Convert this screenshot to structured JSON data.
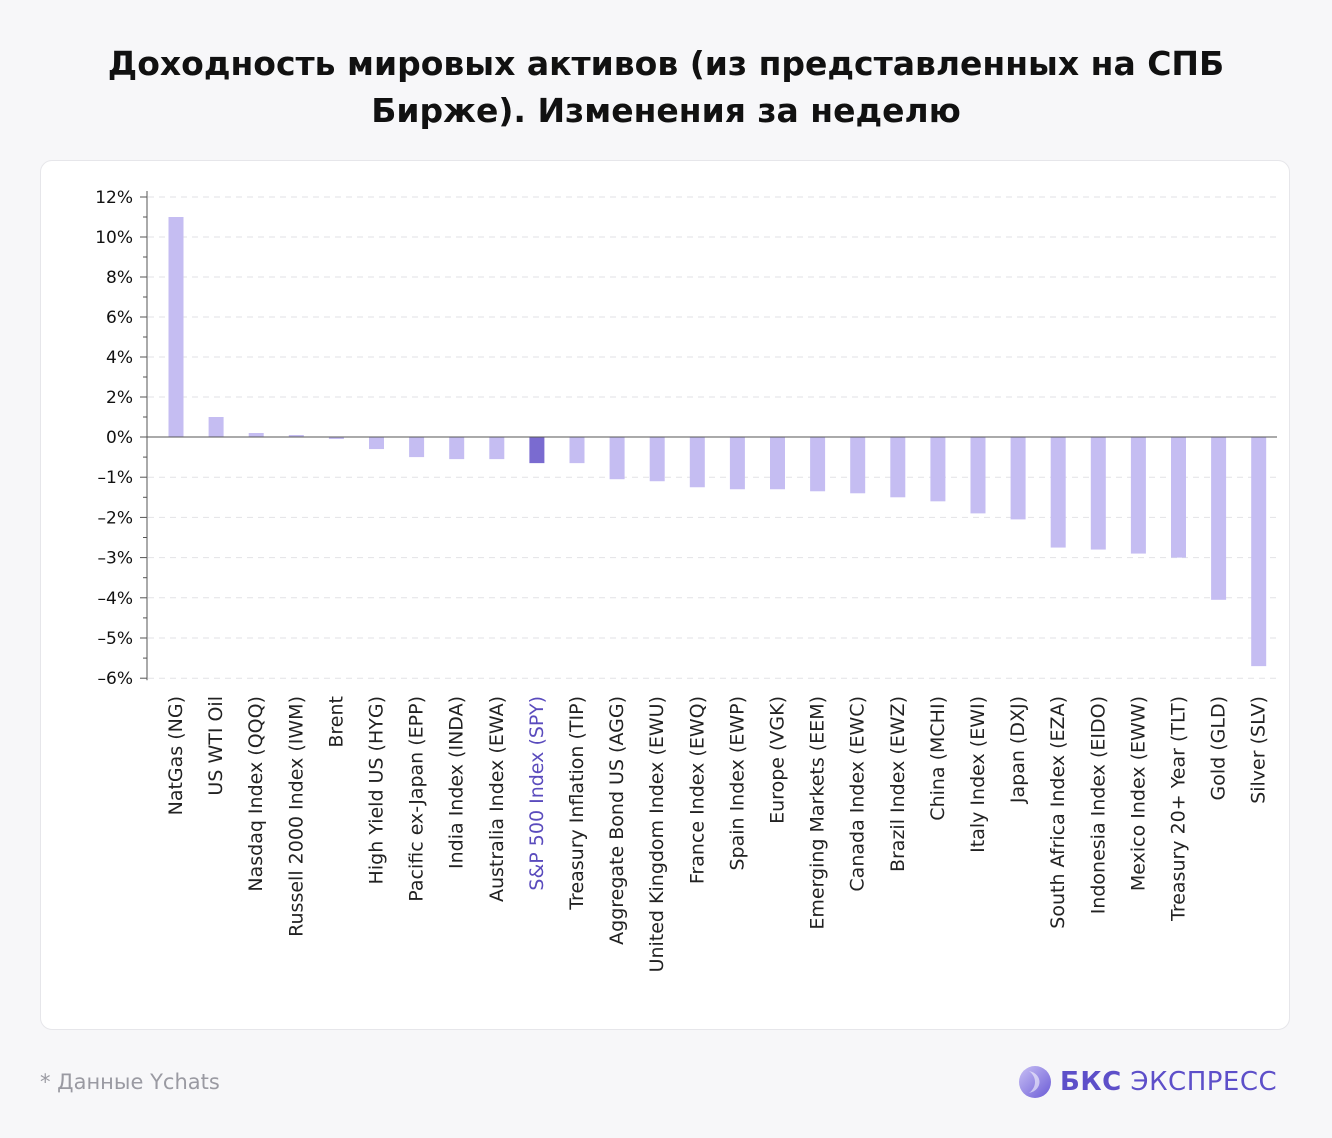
{
  "title": "Доходность мировых активов (из представленных на СПБ Бирже). Изменения за неделю",
  "footnote": "* Данные Ychats",
  "logo": {
    "bold": "БКС",
    "rest": "ЭКСПРЕСС",
    "icon": "bks-logo-icon"
  },
  "colors": {
    "bar": "#c5bdf2",
    "bar_highlight": "#7a6bd0",
    "label_highlight": "#5a4bbd",
    "label": "#222222",
    "grid": "#e2e2e6",
    "axis": "#555555"
  },
  "chart_data": {
    "type": "bar",
    "title": "",
    "xlabel": "",
    "ylabel": "",
    "ylim": [
      -6,
      12
    ],
    "y_ticks": [
      12,
      10,
      8,
      6,
      4,
      2,
      0,
      -1,
      -2,
      -3,
      -4,
      -5,
      -6
    ],
    "y_tick_labels": [
      "12%",
      "10%",
      "8%",
      "6%",
      "4%",
      "2%",
      "0%",
      "–1%",
      "–2%",
      "–3%",
      "–4%",
      "–5%",
      "–6%"
    ],
    "grid": true,
    "highlight": "S&P 500 Index (SPY)",
    "categories": [
      "NatGas (NG)",
      "US WTI Oil",
      "Nasdaq Index (QQQ)",
      "Russell 2000 Index (IWM)",
      "Brent",
      "High Yield US (HYG)",
      "Pacific ex-Japan (EPP)",
      "India Index (INDA)",
      "Australia Index (EWA)",
      "S&P 500 Index (SPY)",
      "Treasury Inflation (TIP)",
      "Aggregate Bond US (AGG)",
      "United Kingdom Index (EWU)",
      "France Index (EWQ)",
      "Spain Index (EWP)",
      "Europe (VGK)",
      "Emerging Markets (EEM)",
      "Canada Index (EWC)",
      "Brazil Index (EWZ)",
      "China (MCHI)",
      "Italy Index (EWI)",
      "Japan (DXJ)",
      "South Africa Index (EZA)",
      "Indonesia Index (EIDO)",
      "Mexico Index (EWW)",
      "Treasury 20+ Year (TLT)",
      "Gold (GLD)",
      "Silver (SLV)"
    ],
    "values": [
      11.0,
      1.0,
      0.2,
      0.1,
      -0.05,
      -0.3,
      -0.5,
      -0.55,
      -0.55,
      -0.65,
      -0.65,
      -1.05,
      -1.1,
      -1.25,
      -1.3,
      -1.3,
      -1.35,
      -1.4,
      -1.5,
      -1.6,
      -1.9,
      -2.05,
      -2.75,
      -2.8,
      -2.9,
      -3.0,
      -4.05,
      -5.7
    ]
  }
}
